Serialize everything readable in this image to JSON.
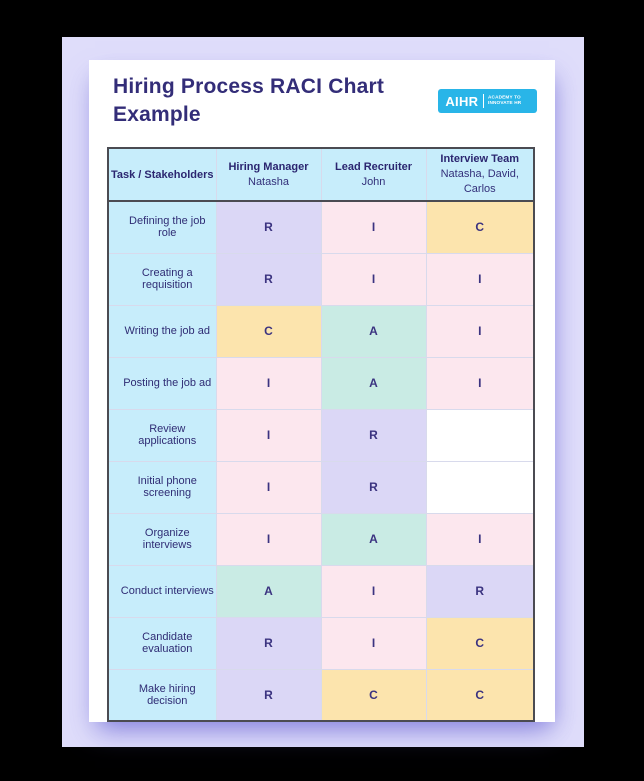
{
  "header": {
    "title": "Hiring Process RACI Chart Example",
    "logo": {
      "brand": "AIHR",
      "tagline_line1": "ACADEMY TO",
      "tagline_line2": "INNOVATE HR"
    }
  },
  "table": {
    "corner_label": "Task / Stakeholders",
    "columns": [
      {
        "role": "Hiring Manager",
        "person": "Natasha"
      },
      {
        "role": "Lead Recruiter",
        "person": "John"
      },
      {
        "role": "Interview Team",
        "person": "Natasha, David, Carlos"
      }
    ],
    "rows": [
      {
        "task": "Defining the job role",
        "cells": [
          {
            "letter": "R",
            "color": "purple"
          },
          {
            "letter": "I",
            "color": "pink"
          },
          {
            "letter": "C",
            "color": "yellow"
          }
        ]
      },
      {
        "task": "Creating a requisition",
        "cells": [
          {
            "letter": "R",
            "color": "purple"
          },
          {
            "letter": "I",
            "color": "pink"
          },
          {
            "letter": "I",
            "color": "pink"
          }
        ]
      },
      {
        "task": "Writing the job ad",
        "cells": [
          {
            "letter": "C",
            "color": "yellow"
          },
          {
            "letter": "A",
            "color": "mint"
          },
          {
            "letter": "I",
            "color": "pink"
          }
        ]
      },
      {
        "task": "Posting the job ad",
        "cells": [
          {
            "letter": "I",
            "color": "pink"
          },
          {
            "letter": "A",
            "color": "mint"
          },
          {
            "letter": "I",
            "color": "pink"
          }
        ]
      },
      {
        "task": "Review applications",
        "cells": [
          {
            "letter": "I",
            "color": "pink"
          },
          {
            "letter": "R",
            "color": "purple"
          },
          {
            "letter": "",
            "color": "empty"
          }
        ]
      },
      {
        "task": "Initial phone screening",
        "cells": [
          {
            "letter": "I",
            "color": "pink"
          },
          {
            "letter": "R",
            "color": "purple"
          },
          {
            "letter": "",
            "color": "empty"
          }
        ]
      },
      {
        "task": "Organize interviews",
        "cells": [
          {
            "letter": "I",
            "color": "pink"
          },
          {
            "letter": "A",
            "color": "mint"
          },
          {
            "letter": "I",
            "color": "pink"
          }
        ]
      },
      {
        "task": "Conduct interviews",
        "cells": [
          {
            "letter": "A",
            "color": "mint"
          },
          {
            "letter": "I",
            "color": "pink"
          },
          {
            "letter": "R",
            "color": "purple"
          }
        ]
      },
      {
        "task": "Candidate evaluation",
        "cells": [
          {
            "letter": "R",
            "color": "purple"
          },
          {
            "letter": "I",
            "color": "pink"
          },
          {
            "letter": "C",
            "color": "yellow"
          }
        ]
      },
      {
        "task": "Make hiring decision",
        "cells": [
          {
            "letter": "R",
            "color": "purple"
          },
          {
            "letter": "C",
            "color": "yellow"
          },
          {
            "letter": "C",
            "color": "yellow"
          }
        ]
      }
    ]
  },
  "colors": {
    "purple": "#dbd7f6",
    "pink": "#fce7ee",
    "yellow": "#fce4ad",
    "mint": "#c9ebe4",
    "empty": "#ffffff",
    "header_cyan": "#c7edfb",
    "logo_cyan": "#29b5e8",
    "title_navy": "#332d78",
    "backdrop_lavender": "#dfddfa"
  }
}
